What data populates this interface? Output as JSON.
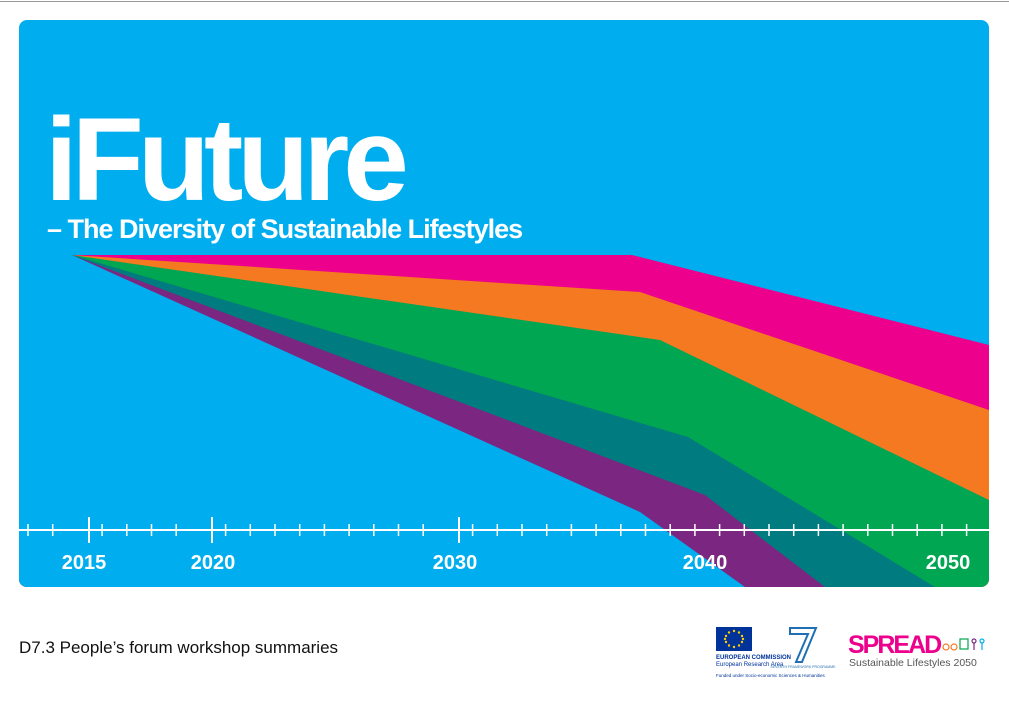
{
  "cover": {
    "title": "iFuture",
    "subtitle": "– The Diversity of Sustainable Lifestyles",
    "timeline": [
      "2015",
      "2020",
      "2030",
      "2040",
      "2050"
    ]
  },
  "footer": {
    "document": "D7.3 People’s forum workshop summaries",
    "ec_line1": "EUROPEAN COMMISSION",
    "ec_line2": "European Research Area",
    "ec_funding": "Funded under Socio-economic Sciences & Humanities",
    "fp7": "SEVENTH FRAMEWORK PROGRAMME",
    "spread": "SPREAD",
    "spread_tagline": "Sustainable Lifestyles 2050"
  }
}
